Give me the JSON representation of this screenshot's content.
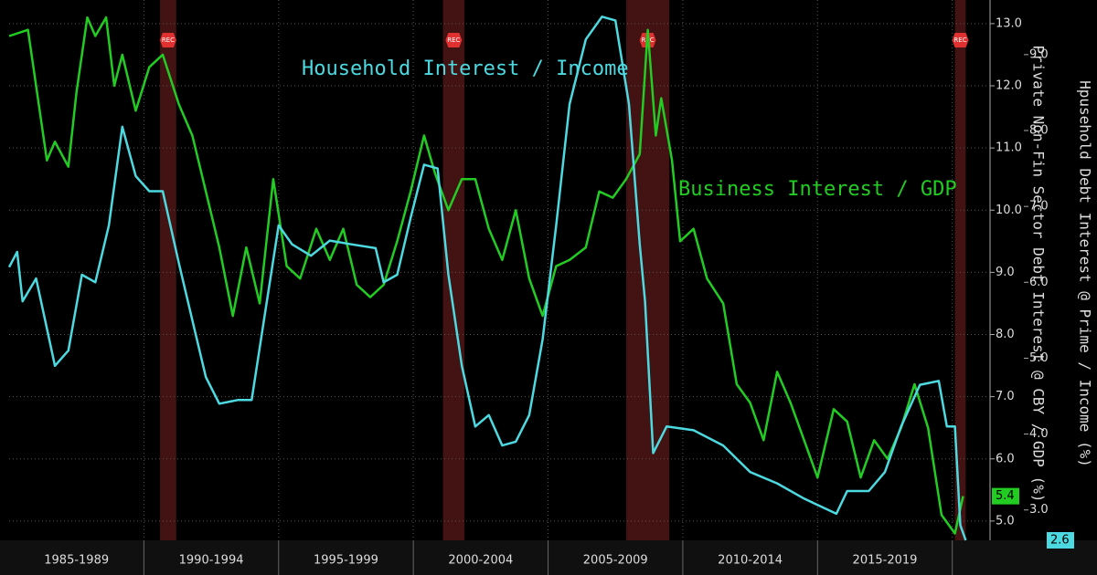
{
  "chart_data": {
    "type": "line",
    "annotations": [
      "Household Interest / Income",
      "Business Interest / GDP"
    ],
    "ylabel": "Private Non-Fin Sector Debt Interest @ CBY / GDP (%)",
    "y2label": "Hpusehold Debt Interest @ Prime / Income (%)",
    "xlim": [
      1985,
      2021.3
    ],
    "xticks": [
      1990,
      1995,
      2000,
      2005,
      2010,
      2015,
      2020
    ],
    "periods": [
      {
        "label": "1985-1989",
        "start": 1985,
        "end": 1990
      },
      {
        "label": "1990-1994",
        "start": 1990,
        "end": 1995
      },
      {
        "label": "1995-1999",
        "start": 1995,
        "end": 2000
      },
      {
        "label": "2000-2004",
        "start": 2000,
        "end": 2005
      },
      {
        "label": "2005-2009",
        "start": 2005,
        "end": 2010
      },
      {
        "label": "2010-2014",
        "start": 2010,
        "end": 2015
      },
      {
        "label": "2015-2019",
        "start": 2015,
        "end": 2020
      }
    ],
    "recession_label": "REC",
    "recessions": [
      {
        "start": 1990.6,
        "end": 1991.2
      },
      {
        "start": 2001.1,
        "end": 2001.9
      },
      {
        "start": 2007.9,
        "end": 2009.5
      },
      {
        "start": 2020.1,
        "end": 2020.5
      }
    ],
    "ylim": [
      4.69,
      13.38
    ],
    "yticks": [
      {
        "value": 5,
        "label": "5.0"
      },
      {
        "value": 6,
        "label": "6.0"
      },
      {
        "value": 7,
        "label": "7.0"
      },
      {
        "value": 8,
        "label": "8.0"
      },
      {
        "value": 9,
        "label": "9.0"
      },
      {
        "value": 10,
        "label": "10.0"
      },
      {
        "value": 11,
        "label": "11.0"
      },
      {
        "value": 12,
        "label": "12.0"
      },
      {
        "value": 13,
        "label": "13.0"
      }
    ],
    "y2lim": [
      2.6,
      9.72
    ],
    "y2ticks": [
      {
        "value": 3,
        "label": "3.0"
      },
      {
        "value": 4,
        "label": "4.0"
      },
      {
        "value": 5,
        "label": "5.0"
      },
      {
        "value": 6,
        "label": "6.0"
      },
      {
        "value": 7,
        "label": "7.0"
      },
      {
        "value": 8,
        "label": "8.0"
      },
      {
        "value": 9,
        "label": "9.0"
      }
    ],
    "grid": true,
    "series": [
      {
        "name": "Business Interest / GDP",
        "color": "#22cc22",
        "axis": "y",
        "x": [
          1985.0,
          1985.7,
          1986.2,
          1986.4,
          1986.7,
          1987.2,
          1987.5,
          1987.9,
          1988.2,
          1988.6,
          1988.9,
          1989.2,
          1989.7,
          1990.2,
          1990.7,
          1991.3,
          1991.8,
          1992.3,
          1992.8,
          1993.3,
          1993.8,
          1994.3,
          1994.8,
          1995.3,
          1995.8,
          1996.4,
          1996.9,
          1997.4,
          1997.9,
          1998.4,
          1998.9,
          1999.4,
          1999.9,
          2000.4,
          2000.8,
          2001.3,
          2001.8,
          2002.3,
          2002.8,
          2003.3,
          2003.8,
          2004.3,
          2004.8,
          2005.3,
          2005.8,
          2006.4,
          2006.9,
          2007.4,
          2007.9,
          2008.4,
          2008.7,
          2009.0,
          2009.2,
          2009.6,
          2009.9,
          2010.4,
          2010.9,
          2011.5,
          2012.0,
          2012.5,
          2013.0,
          2013.5,
          2014.0,
          2014.5,
          2015.0,
          2015.6,
          2016.1,
          2016.6,
          2017.1,
          2017.6,
          2018.1,
          2018.6,
          2019.1,
          2019.6,
          2020.1,
          2020.4
        ],
        "values": [
          12.8,
          12.9,
          11.4,
          10.8,
          11.1,
          10.7,
          11.9,
          13.1,
          12.8,
          13.1,
          12.0,
          12.5,
          11.6,
          12.3,
          12.5,
          11.7,
          11.2,
          10.3,
          9.4,
          8.3,
          9.4,
          8.5,
          10.5,
          9.1,
          8.9,
          9.7,
          9.2,
          9.7,
          8.8,
          8.6,
          8.8,
          9.5,
          10.3,
          11.2,
          10.6,
          10.0,
          10.5,
          10.5,
          9.7,
          9.2,
          10.0,
          8.9,
          8.3,
          9.1,
          9.2,
          9.4,
          10.3,
          10.2,
          10.5,
          10.9,
          12.9,
          11.2,
          11.8,
          10.8,
          9.5,
          9.7,
          8.9,
          8.5,
          7.2,
          6.9,
          6.3,
          7.4,
          6.9,
          6.3,
          5.7,
          6.8,
          6.6,
          5.7,
          6.3,
          6.0,
          6.5,
          7.2,
          6.5,
          5.1,
          4.8,
          5.4
        ]
      },
      {
        "name": "Household Interest / Income",
        "color": "#4dd9e0",
        "axis": "y2",
        "x": [
          1985.0,
          1985.3,
          1985.5,
          1986.0,
          1986.7,
          1987.2,
          1987.7,
          1988.2,
          1988.7,
          1989.2,
          1989.7,
          1990.2,
          1990.7,
          1991.3,
          1991.8,
          1992.3,
          1992.8,
          1993.5,
          1994.0,
          1994.5,
          1995.0,
          1995.5,
          1996.2,
          1996.9,
          1997.7,
          1998.6,
          1998.9,
          1999.4,
          1999.9,
          2000.4,
          2000.9,
          2001.3,
          2001.8,
          2002.3,
          2002.8,
          2003.3,
          2003.8,
          2004.3,
          2004.8,
          2005.3,
          2005.8,
          2006.4,
          2007.0,
          2007.5,
          2008.0,
          2008.4,
          2008.6,
          2008.9,
          2009.4,
          2010.4,
          2011.5,
          2012.5,
          2013.5,
          2014.5,
          2015.7,
          2016.1,
          2016.9,
          2017.5,
          2018.1,
          2018.8,
          2019.5,
          2019.8,
          2020.1,
          2020.3,
          2020.5
        ],
        "values": [
          6.2,
          6.4,
          5.75,
          6.05,
          4.9,
          5.1,
          6.1,
          6.0,
          6.75,
          8.05,
          7.4,
          7.2,
          7.2,
          6.25,
          5.5,
          4.75,
          4.4,
          4.45,
          4.45,
          5.6,
          6.75,
          6.5,
          6.35,
          6.55,
          6.5,
          6.45,
          6.0,
          6.1,
          6.85,
          7.55,
          7.5,
          6.1,
          4.9,
          4.1,
          4.25,
          3.85,
          3.9,
          4.25,
          5.25,
          6.75,
          8.35,
          9.2,
          9.5,
          9.45,
          8.35,
          6.5,
          5.75,
          3.75,
          4.1,
          4.05,
          3.85,
          3.5,
          3.35,
          3.15,
          2.95,
          3.25,
          3.25,
          3.5,
          4.1,
          4.65,
          4.7,
          4.1,
          4.1,
          2.8,
          2.6
        ]
      }
    ]
  }
}
